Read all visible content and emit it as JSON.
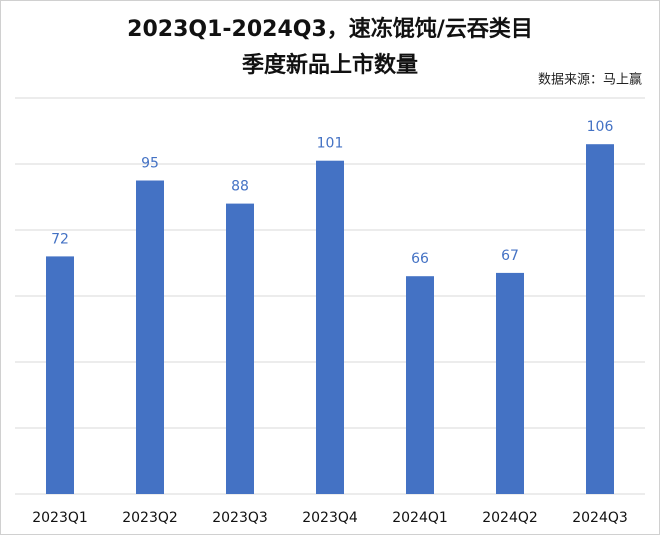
{
  "chart_data": {
    "type": "bar",
    "title": [
      "2023Q1-2024Q3，速冻馄饨/云吞类目",
      "季度新品上市数量"
    ],
    "source": "数据来源：马上赢",
    "categories": [
      "2023Q1",
      "2023Q2",
      "2023Q3",
      "2023Q4",
      "2024Q1",
      "2024Q2",
      "2024Q3"
    ],
    "values": [
      72,
      95,
      88,
      101,
      66,
      67,
      106
    ],
    "color": "#4472c4",
    "ylim": [
      0,
      120
    ],
    "yticks": [
      0,
      20,
      40,
      60,
      80,
      100,
      120
    ],
    "grid": true
  }
}
